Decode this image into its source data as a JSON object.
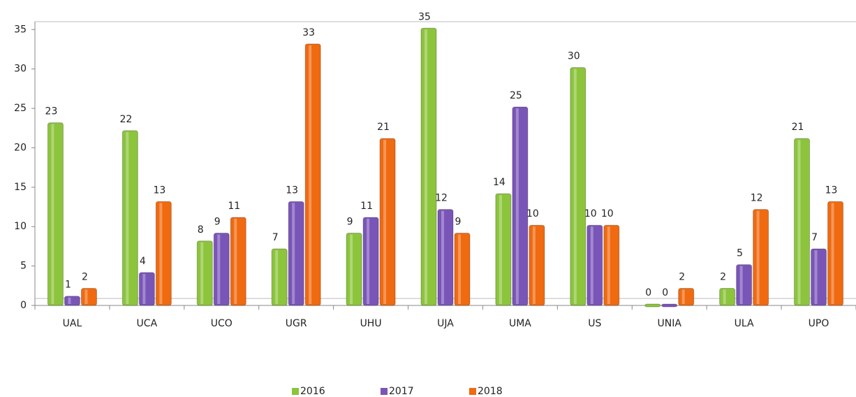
{
  "chart_data": {
    "type": "bar",
    "categories": [
      "UAL",
      "UCA",
      "UCO",
      "UGR",
      "UHU",
      "UJA",
      "UMA",
      "US",
      "UNIA",
      "ULA",
      "UPO"
    ],
    "series": [
      {
        "name": "2016",
        "color": "#8cc43c",
        "values": [
          23,
          22,
          8,
          7,
          9,
          35,
          14,
          30,
          0,
          2,
          21
        ]
      },
      {
        "name": "2017",
        "color": "#7a55b8",
        "values": [
          1,
          4,
          9,
          13,
          11,
          12,
          25,
          10,
          0,
          5,
          7
        ]
      },
      {
        "name": "2018",
        "color": "#f06a10",
        "values": [
          2,
          13,
          11,
          33,
          21,
          9,
          10,
          10,
          2,
          12,
          13
        ]
      }
    ],
    "ylim": [
      0,
      36
    ],
    "yticks": [
      0,
      5,
      10,
      15,
      20,
      25,
      30,
      35
    ],
    "grid": false,
    "legend": "bottom"
  }
}
